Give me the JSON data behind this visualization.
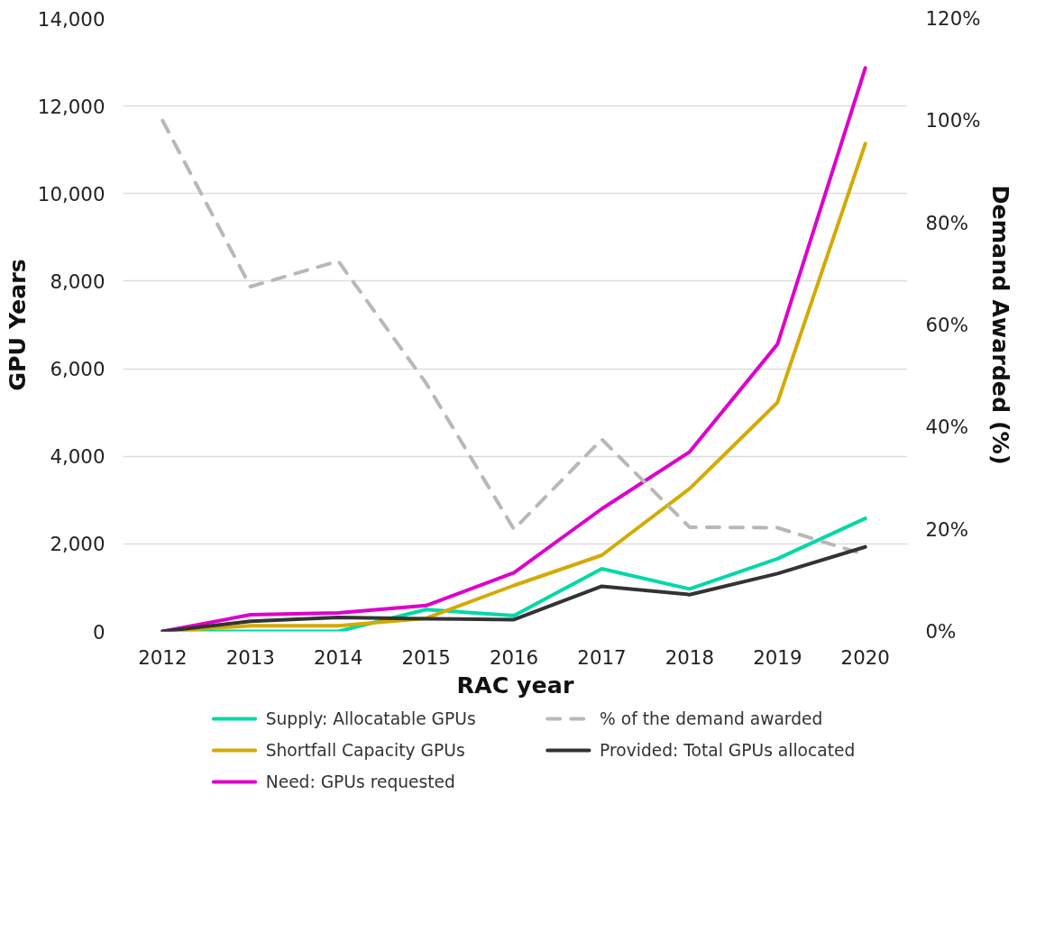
{
  "chart_data": {
    "type": "line",
    "xlabel": "RAC year",
    "ylabel": "GPU Years",
    "y2label": "Demand Awarded (%)",
    "x": [
      2012,
      2013,
      2014,
      2015,
      2016,
      2017,
      2018,
      2019,
      2020
    ],
    "xlim": [
      2011.55,
      2020.48
    ],
    "xticks": [
      2012,
      2013,
      2014,
      2015,
      2016,
      2017,
      2018,
      2019,
      2020
    ],
    "ylim": [
      0,
      14000
    ],
    "yticks": [
      {
        "value": 0,
        "label": "0"
      },
      {
        "value": 2000,
        "label": "2,000"
      },
      {
        "value": 4000,
        "label": "4,000"
      },
      {
        "value": 6000,
        "label": "6,000"
      },
      {
        "value": 8000,
        "label": "8,000"
      },
      {
        "value": 10000,
        "label": "10,000"
      },
      {
        "value": 12000,
        "label": "12,000"
      },
      {
        "value": 14000,
        "label": "14,000"
      }
    ],
    "y2lim": [
      0,
      120
    ],
    "y2ticks": [
      {
        "value": 0,
        "label": "0%"
      },
      {
        "value": 20,
        "label": "20%"
      },
      {
        "value": 40,
        "label": "40%"
      },
      {
        "value": 60,
        "label": "60%"
      },
      {
        "value": 80,
        "label": "80%"
      },
      {
        "value": 100,
        "label": "100%"
      },
      {
        "value": 120,
        "label": "120%"
      }
    ],
    "grid": "y",
    "legend": "bottom",
    "marker": "none",
    "series": [
      {
        "name": "Supply: Allocatable GPUs",
        "color": "#00d9a6",
        "values": [
          0,
          0,
          0,
          500,
          360,
          1430,
          970,
          1660,
          2580
        ]
      },
      {
        "name": "Shortfall Capacity GPUs",
        "color": "#d4aa00",
        "values": [
          0,
          130,
          130,
          300,
          1050,
          1740,
          3260,
          5230,
          11140
        ]
      },
      {
        "name": "Need: GPUs requested",
        "color": "#dd00cc",
        "values": [
          0,
          380,
          420,
          590,
          1340,
          2800,
          4100,
          6560,
          12870
        ]
      },
      {
        "name": "% of the demand awarded",
        "color": "#b8b8b4",
        "axis": "y2",
        "line_style": "dashed",
        "values": [
          100,
          67.5,
          72.5,
          48.6,
          20,
          37.6,
          20.4,
          20.3,
          15
        ]
      },
      {
        "name": "Provided: Total GPUs allocated",
        "color": "#333333",
        "values": [
          0,
          230,
          320,
          290,
          270,
          1030,
          840,
          1320,
          1930
        ]
      }
    ]
  }
}
